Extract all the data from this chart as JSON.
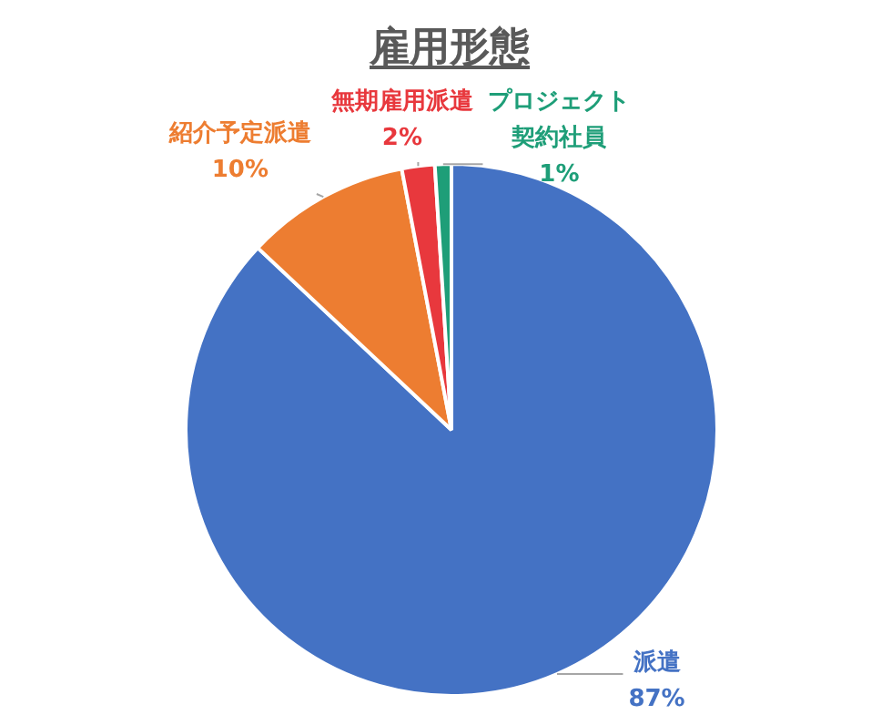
{
  "chart_data": {
    "type": "pie",
    "title": "雇用形態",
    "categories": [
      "派遣",
      "紹介予定派遣",
      "無期雇用派遣",
      "プロジェクト契約社員"
    ],
    "values": [
      87,
      10,
      2,
      1
    ],
    "colors": [
      "#4472c4",
      "#ed7d31",
      "#e8383d",
      "#1e9e78"
    ],
    "value_labels": [
      "87%",
      "10%",
      "2%",
      "1%"
    ],
    "legend": false
  }
}
